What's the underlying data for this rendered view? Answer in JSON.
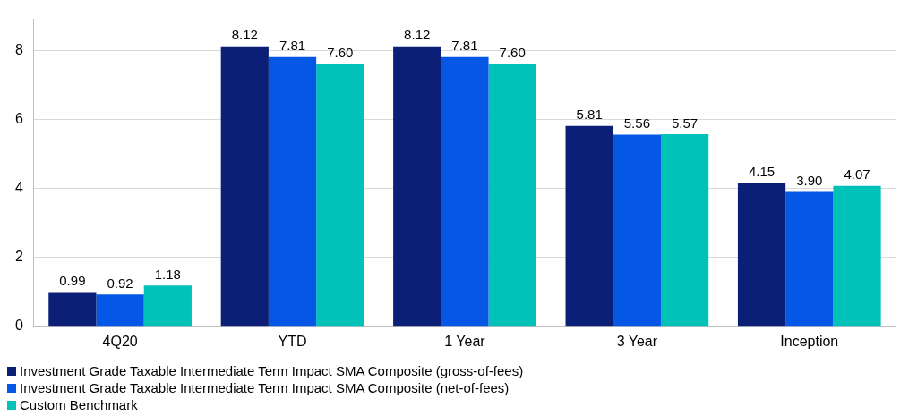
{
  "chart_data": {
    "type": "bar",
    "categories": [
      "4Q20",
      "YTD",
      "1 Year",
      "3 Year",
      "Inception"
    ],
    "series": [
      {
        "name": "Investment Grade Taxable Intermediate Term Impact SMA Composite (gross-of-fees)",
        "color": "#0a1f75",
        "values": [
          0.99,
          8.12,
          8.12,
          5.81,
          4.15
        ],
        "value_labels": [
          "0.99",
          "8.12",
          "8.12",
          "5.81",
          "4.15"
        ]
      },
      {
        "name": "Investment Grade Taxable Intermediate Term Impact SMA Composite (net-of-fees)",
        "color": "#0557e6",
        "values": [
          0.92,
          7.81,
          7.81,
          5.56,
          3.9
        ],
        "value_labels": [
          "0.92",
          "7.81",
          "7.81",
          "5.56",
          "3.90"
        ]
      },
      {
        "name": "Custom Benchmark",
        "color": "#00c2b8",
        "values": [
          1.18,
          7.6,
          7.6,
          5.57,
          4.07
        ],
        "value_labels": [
          "1.18",
          "7.60",
          "7.60",
          "5.57",
          "4.07"
        ]
      }
    ],
    "ylim": [
      0,
      8.9
    ],
    "yticks": [
      0,
      2,
      4,
      6,
      8
    ],
    "grid": "y",
    "legend": "bottom left"
  }
}
